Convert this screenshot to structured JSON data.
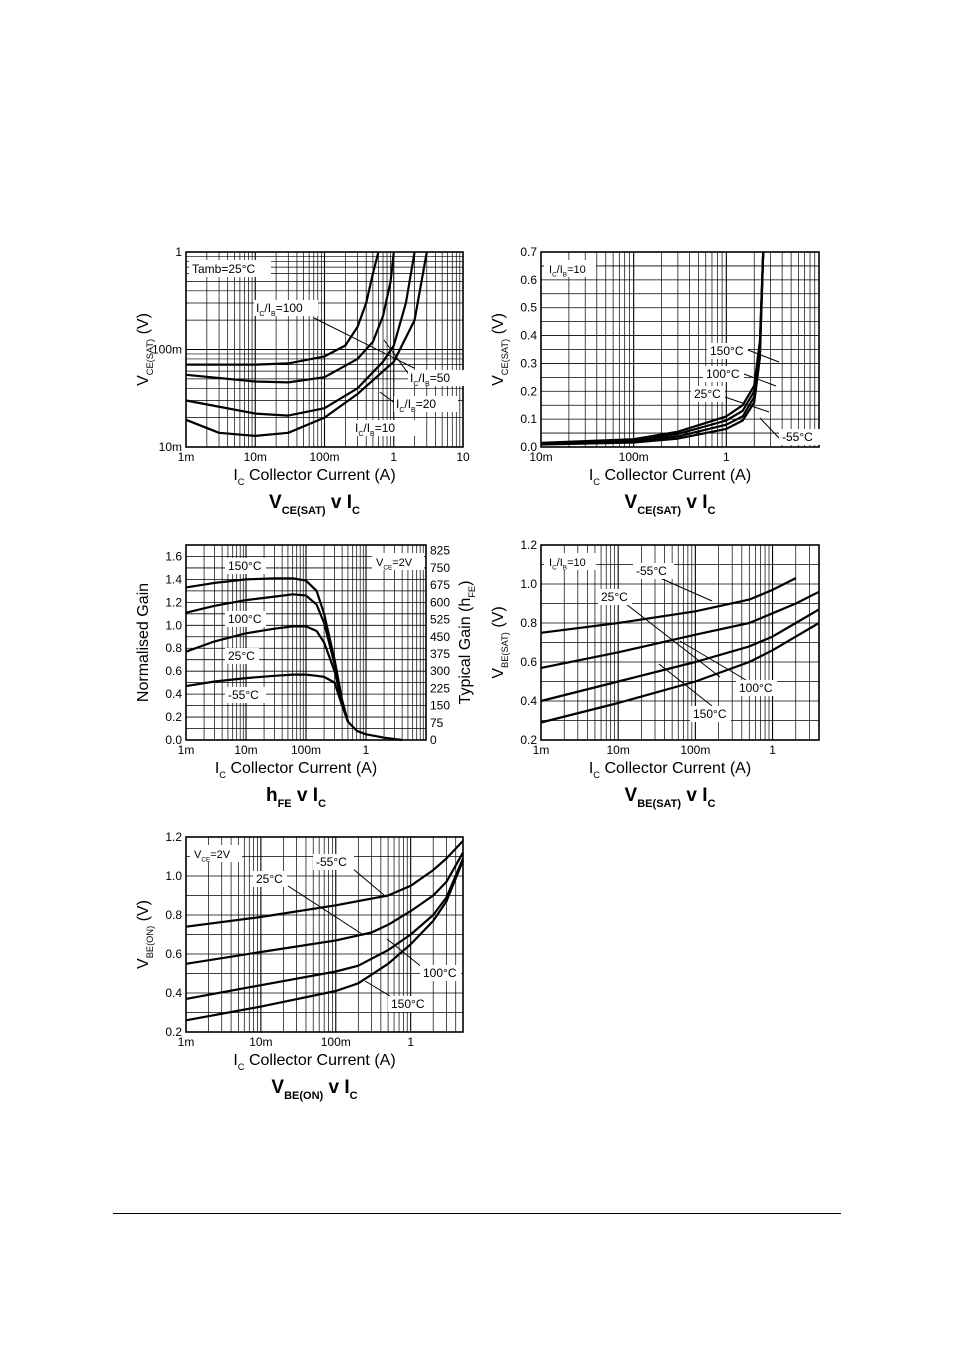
{
  "chart_data": [
    {
      "id": "vcesat-ratio",
      "type": "line",
      "xscale": "log",
      "yscale": "log",
      "xlim": [
        0.001,
        10
      ],
      "ylim": [
        0.01,
        1
      ],
      "x_ticks": [
        "1m",
        "10m",
        "100m",
        "1",
        "10"
      ],
      "y_ticks": [
        "10m",
        "100m",
        "1"
      ],
      "grid": true,
      "xlabel_sym": "I",
      "xlabel_sub": "C",
      "xlabel_text": "Collector Current (A)",
      "ylabel_sym": "V",
      "ylabel_sub": "CE(SAT)",
      "ylabel_unit": "(V)",
      "title_sym": "V",
      "title_sub": "CE(SAT)",
      "title_mid": " v I",
      "title_sub2": "C",
      "condition": "Tamb=25°C",
      "series": [
        {
          "name": "IC/IB=100",
          "label_parts": [
            "I",
            "C",
            "/I",
            "B",
            "=100"
          ],
          "x": [
            0.001,
            0.01,
            0.03,
            0.1,
            0.2,
            0.3,
            0.4,
            0.5,
            0.6
          ],
          "y": [
            0.07,
            0.07,
            0.072,
            0.085,
            0.11,
            0.17,
            0.3,
            0.6,
            1.0
          ]
        },
        {
          "name": "IC/IB=50",
          "label_parts": [
            "I",
            "C",
            "/I",
            "B",
            "=50"
          ],
          "x": [
            0.001,
            0.01,
            0.03,
            0.1,
            0.3,
            0.5,
            0.7,
            0.9,
            1.0
          ],
          "y": [
            0.055,
            0.047,
            0.046,
            0.052,
            0.08,
            0.12,
            0.22,
            0.5,
            1.0
          ]
        },
        {
          "name": "IC/IB=20",
          "label_parts": [
            "I",
            "C",
            "/I",
            "B",
            "=20"
          ],
          "x": [
            0.001,
            0.01,
            0.03,
            0.1,
            0.3,
            0.7,
            1.0,
            1.5,
            2.0
          ],
          "y": [
            0.03,
            0.022,
            0.021,
            0.025,
            0.04,
            0.075,
            0.11,
            0.3,
            1.0
          ]
        },
        {
          "name": "IC/IB=10",
          "label_parts": [
            "I",
            "C",
            "/I",
            "B",
            "=10"
          ],
          "x": [
            0.001,
            0.003,
            0.01,
            0.03,
            0.1,
            0.3,
            1.0,
            2.0,
            3.0
          ],
          "y": [
            0.019,
            0.014,
            0.013,
            0.014,
            0.02,
            0.035,
            0.075,
            0.2,
            1.0
          ]
        }
      ]
    },
    {
      "id": "vcesat-temp",
      "type": "line",
      "xscale": "log",
      "yscale": "linear",
      "xlim": [
        0.01,
        10
      ],
      "ylim": [
        0,
        0.7
      ],
      "x_ticks": [
        "10m",
        "100m",
        "1"
      ],
      "y_ticks": [
        "0.0",
        "0.1",
        "0.2",
        "0.3",
        "0.4",
        "0.5",
        "0.6",
        "0.7"
      ],
      "grid": true,
      "xlabel_sym": "I",
      "xlabel_sub": "C",
      "xlabel_text": "Collector Current (A)",
      "ylabel_sym": "V",
      "ylabel_sub": "CE(SAT)",
      "ylabel_unit": "(V)",
      "title_sym": "V",
      "title_sub": "CE(SAT)",
      "title_mid": " v I",
      "title_sub2": "C",
      "condition_parts": [
        "I",
        "C",
        "/I",
        "B",
        "=10"
      ],
      "series": [
        {
          "name": "150°C",
          "x": [
            0.01,
            0.1,
            0.3,
            1.0,
            1.5,
            2.0,
            2.3,
            2.5
          ],
          "y": [
            0.015,
            0.028,
            0.055,
            0.11,
            0.15,
            0.22,
            0.38,
            0.7
          ]
        },
        {
          "name": "100°C",
          "x": [
            0.01,
            0.1,
            0.3,
            1.0,
            1.5,
            2.0,
            2.3,
            2.5
          ],
          "y": [
            0.013,
            0.024,
            0.047,
            0.095,
            0.13,
            0.2,
            0.36,
            0.7
          ]
        },
        {
          "name": "25°C",
          "x": [
            0.01,
            0.1,
            0.3,
            1.0,
            1.5,
            2.0,
            2.3,
            2.5
          ],
          "y": [
            0.011,
            0.02,
            0.038,
            0.08,
            0.11,
            0.18,
            0.34,
            0.7
          ]
        },
        {
          "name": "-55°C",
          "x": [
            0.01,
            0.1,
            0.3,
            1.0,
            1.5,
            2.0,
            2.3,
            2.5
          ],
          "y": [
            0.009,
            0.016,
            0.03,
            0.065,
            0.095,
            0.16,
            0.32,
            0.7
          ]
        }
      ]
    },
    {
      "id": "hfe",
      "type": "line",
      "xscale": "log",
      "yscale": "linear",
      "xlim": [
        0.001,
        10
      ],
      "ylim": [
        0,
        1.7
      ],
      "x_ticks": [
        "1m",
        "10m",
        "100m",
        "1"
      ],
      "y_ticks": [
        "0.0",
        "0.2",
        "0.4",
        "0.6",
        "0.8",
        "1.0",
        "1.2",
        "1.4",
        "1.6"
      ],
      "y2_ticks": [
        "0",
        "75",
        "150",
        "225",
        "300",
        "375",
        "450",
        "525",
        "600",
        "675",
        "750",
        "825"
      ],
      "grid": true,
      "xlabel_sym": "I",
      "xlabel_sub": "C",
      "xlabel_text": "Collector Current (A)",
      "ylabel": "Normalised Gain",
      "y2label_text": "Typical Gain (h",
      "y2label_sub": "FE",
      "y2label_end": ")",
      "title_sym": "h",
      "title_sub": "FE",
      "title_mid": " v I",
      "title_sub2": "C",
      "condition_parts": [
        "V",
        "CE",
        "=2V"
      ],
      "series": [
        {
          "name": "150°C",
          "x": [
            0.001,
            0.003,
            0.01,
            0.03,
            0.06,
            0.1,
            0.15,
            0.2,
            0.3,
            0.4,
            0.5,
            0.7,
            1.0,
            2.0,
            4.0
          ],
          "y": [
            1.33,
            1.37,
            1.4,
            1.41,
            1.41,
            1.39,
            1.3,
            1.1,
            0.7,
            0.35,
            0.16,
            0.08,
            0.05,
            0.02,
            0.0
          ]
        },
        {
          "name": "100°C",
          "x": [
            0.001,
            0.003,
            0.01,
            0.03,
            0.06,
            0.1,
            0.15,
            0.2,
            0.3,
            0.4,
            0.5
          ],
          "y": [
            1.11,
            1.17,
            1.22,
            1.25,
            1.27,
            1.26,
            1.18,
            1.02,
            0.66,
            0.33,
            0.16
          ]
        },
        {
          "name": "25°C",
          "x": [
            0.001,
            0.003,
            0.01,
            0.03,
            0.06,
            0.1,
            0.15,
            0.2,
            0.3,
            0.4,
            0.5
          ],
          "y": [
            0.77,
            0.86,
            0.93,
            0.97,
            0.99,
            0.99,
            0.95,
            0.85,
            0.6,
            0.32,
            0.16
          ]
        },
        {
          "name": "-55°C",
          "x": [
            0.001,
            0.003,
            0.01,
            0.03,
            0.06,
            0.1,
            0.15,
            0.2,
            0.3,
            0.4,
            0.5
          ],
          "y": [
            0.47,
            0.51,
            0.54,
            0.56,
            0.57,
            0.57,
            0.56,
            0.55,
            0.5,
            0.3,
            0.16
          ]
        }
      ]
    },
    {
      "id": "vbesat",
      "type": "line",
      "xscale": "log",
      "yscale": "linear",
      "xlim": [
        0.001,
        4
      ],
      "ylim": [
        0.2,
        1.2
      ],
      "x_ticks": [
        "1m",
        "10m",
        "100m",
        "1"
      ],
      "y_ticks": [
        "0.2",
        "0.4",
        "0.6",
        "0.8",
        "1.0",
        "1.2"
      ],
      "grid": true,
      "xlabel_sym": "I",
      "xlabel_sub": "C",
      "xlabel_text": "Collector Current (A)",
      "ylabel_sym": "V",
      "ylabel_sub": "BE(SAT)",
      "ylabel_unit": "(V)",
      "title_sym": "V",
      "title_sub": "BE(SAT)",
      "title_mid": " v I",
      "title_sub2": "C",
      "condition_parts": [
        "I",
        "C",
        "/I",
        "B",
        "=10"
      ],
      "series": [
        {
          "name": "-55°C",
          "x": [
            0.001,
            0.01,
            0.1,
            0.5,
            1.0,
            2.0
          ],
          "y": [
            0.75,
            0.8,
            0.86,
            0.92,
            0.97,
            1.03
          ]
        },
        {
          "name": "25°C",
          "x": [
            0.001,
            0.01,
            0.1,
            0.5,
            1.0,
            2.0,
            4.0
          ],
          "y": [
            0.57,
            0.65,
            0.74,
            0.8,
            0.85,
            0.9,
            0.96
          ]
        },
        {
          "name": "100°C",
          "x": [
            0.001,
            0.01,
            0.1,
            0.5,
            1.0,
            2.0,
            4.0
          ],
          "y": [
            0.4,
            0.5,
            0.6,
            0.68,
            0.73,
            0.8,
            0.87
          ]
        },
        {
          "name": "150°C",
          "x": [
            0.001,
            0.01,
            0.1,
            0.5,
            1.0,
            2.0,
            4.0
          ],
          "y": [
            0.29,
            0.39,
            0.5,
            0.6,
            0.66,
            0.73,
            0.8
          ]
        }
      ]
    },
    {
      "id": "vbeon",
      "type": "line",
      "xscale": "log",
      "yscale": "linear",
      "xlim": [
        0.001,
        5
      ],
      "ylim": [
        0.2,
        1.2
      ],
      "x_ticks": [
        "1m",
        "10m",
        "100m",
        "1"
      ],
      "y_ticks": [
        "0.2",
        "0.4",
        "0.6",
        "0.8",
        "1.0",
        "1.2"
      ],
      "grid": true,
      "xlabel_sym": "I",
      "xlabel_sub": "C",
      "xlabel_text": "Collector Current (A)",
      "ylabel_sym": "V",
      "ylabel_sub": "BE(ON)",
      "ylabel_unit": "(V)",
      "title_sym": "V",
      "title_sub": "BE(ON)",
      "title_mid": " v I",
      "title_sub2": "C",
      "condition_parts": [
        "V",
        "CE",
        "=2V"
      ],
      "series": [
        {
          "name": "-55°C",
          "x": [
            0.001,
            0.01,
            0.1,
            0.5,
            1.0,
            2.0,
            3.0,
            5.0
          ],
          "y": [
            0.74,
            0.79,
            0.85,
            0.9,
            0.95,
            1.03,
            1.09,
            1.18
          ]
        },
        {
          "name": "25°C",
          "x": [
            0.001,
            0.01,
            0.1,
            0.3,
            0.5,
            1.0,
            2.0,
            3.0,
            5.0
          ],
          "y": [
            0.55,
            0.61,
            0.67,
            0.71,
            0.75,
            0.82,
            0.9,
            0.97,
            1.12
          ]
        },
        {
          "name": "100°C",
          "x": [
            0.001,
            0.01,
            0.1,
            0.2,
            0.5,
            1.0,
            2.0,
            3.0,
            5.0
          ],
          "y": [
            0.37,
            0.44,
            0.51,
            0.54,
            0.62,
            0.7,
            0.8,
            0.89,
            1.09
          ]
        },
        {
          "name": "150°C",
          "x": [
            0.001,
            0.01,
            0.1,
            0.2,
            0.5,
            1.0,
            2.0,
            3.0,
            5.0
          ],
          "y": [
            0.26,
            0.33,
            0.41,
            0.45,
            0.55,
            0.65,
            0.77,
            0.87,
            1.08
          ]
        }
      ]
    }
  ]
}
